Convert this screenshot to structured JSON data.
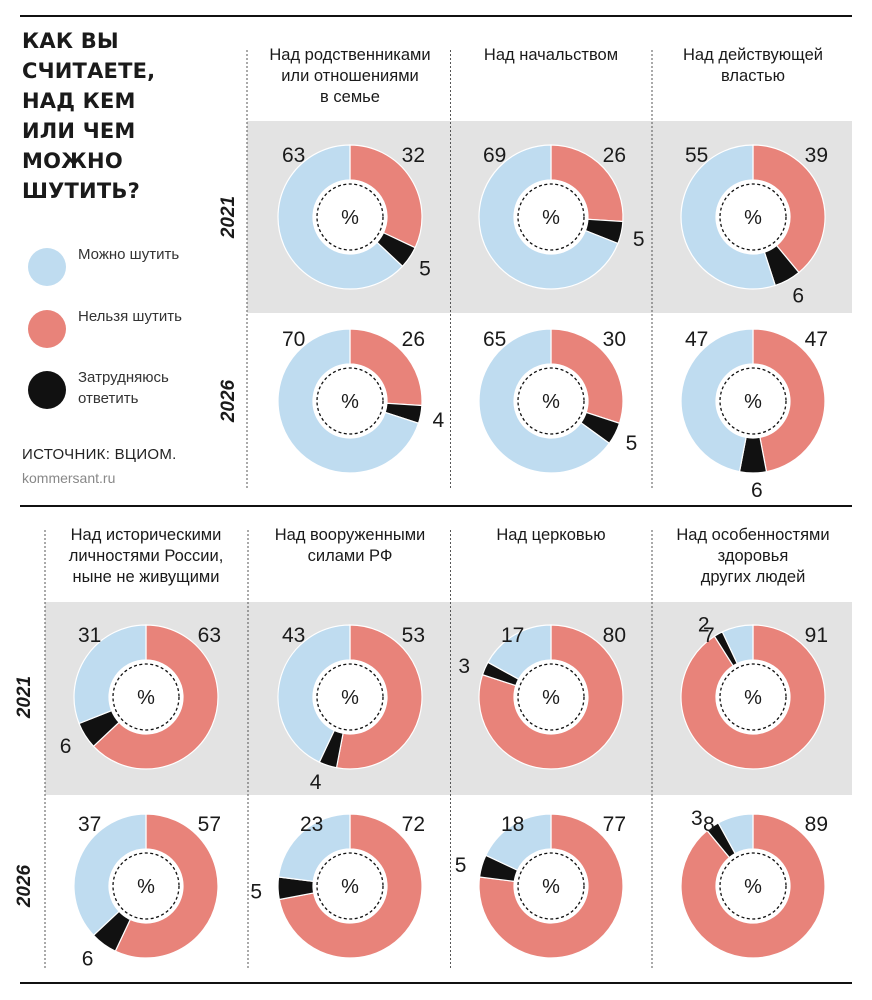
{
  "title": "Как вы считаете, над кем или чем можно шутить?",
  "legend": {
    "items": [
      {
        "label": "Можно шутить",
        "color": "#bfdcf0"
      },
      {
        "label": "Нельзя шутить",
        "color": "#e8837a"
      },
      {
        "label": "Затрудняюсь ответить",
        "color": "#111111"
      }
    ]
  },
  "source": "ИСТОЧНИК: ВЦИОМ.",
  "site": "kommersant.ru",
  "center_label": "%",
  "colors": {
    "can": "#bfdcf0",
    "cannot": "#e8837a",
    "unsure": "#111111",
    "band": "#e3e3e3"
  },
  "chart_data": {
    "type": "pie",
    "title": "Как вы считаете, над кем или чем можно шутить?",
    "unit": "%",
    "series_names": [
      "Можно шутить",
      "Нельзя шутить",
      "Затрудняюсь ответить"
    ],
    "years": [
      "2021",
      "2026"
    ],
    "categories": [
      {
        "label": [
          "Над родственниками",
          "или отношениями",
          "в семье"
        ],
        "values": {
          "2021": [
            63,
            32,
            5
          ],
          "2026": [
            70,
            26,
            4
          ]
        }
      },
      {
        "label": [
          "Над начальством"
        ],
        "values": {
          "2021": [
            69,
            26,
            5
          ],
          "2026": [
            65,
            30,
            5
          ]
        }
      },
      {
        "label": [
          "Над действующей",
          "властью"
        ],
        "values": {
          "2021": [
            55,
            39,
            6
          ],
          "2026": [
            47,
            47,
            6
          ]
        }
      },
      {
        "label": [
          "Над историческими",
          "личностями России,",
          "ныне не живущими"
        ],
        "values": {
          "2021": [
            31,
            63,
            6
          ],
          "2026": [
            37,
            57,
            6
          ]
        }
      },
      {
        "label": [
          "Над вооруженными",
          "силами РФ"
        ],
        "values": {
          "2021": [
            43,
            53,
            4
          ],
          "2026": [
            23,
            72,
            5
          ]
        }
      },
      {
        "label": [
          "Над церковью"
        ],
        "values": {
          "2021": [
            17,
            80,
            3
          ],
          "2026": [
            18,
            77,
            5
          ]
        }
      },
      {
        "label": [
          "Над особенностями",
          "здоровья",
          "других людей"
        ],
        "values": {
          "2021": [
            7,
            91,
            2
          ],
          "2026": [
            8,
            89,
            3
          ]
        }
      }
    ]
  }
}
